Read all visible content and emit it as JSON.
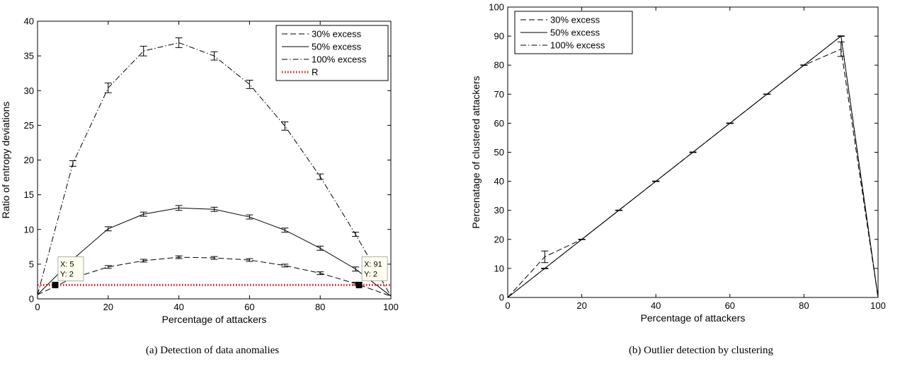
{
  "chart_data": [
    {
      "type": "line",
      "xlabel": "Percentage of attackers",
      "ylabel": "Ratio of entropy deviations",
      "xlim": [
        0,
        100
      ],
      "ylim": [
        0,
        40
      ],
      "xticks": [
        0,
        20,
        40,
        60,
        80,
        100
      ],
      "yticks": [
        0,
        5,
        10,
        15,
        20,
        25,
        30,
        35,
        40
      ],
      "grid": false,
      "legend_position": "top-right",
      "x": [
        0,
        10,
        20,
        30,
        40,
        50,
        60,
        70,
        80,
        90,
        100
      ],
      "series": [
        {
          "name": "30% excess",
          "style": "dashed",
          "color": "#000000",
          "values": [
            0.6,
            3.0,
            4.6,
            5.5,
            6.0,
            5.9,
            5.6,
            4.8,
            3.7,
            2.2,
            0.4
          ],
          "errors": [
            0,
            0.2,
            0.2,
            0.2,
            0.2,
            0.2,
            0.2,
            0.2,
            0.2,
            0.2,
            0
          ]
        },
        {
          "name": "50% excess",
          "style": "solid",
          "color": "#000000",
          "values": [
            0.6,
            5.7,
            10.1,
            12.2,
            13.1,
            12.9,
            11.8,
            9.9,
            7.3,
            4.3,
            0.4
          ],
          "errors": [
            0,
            0.3,
            0.3,
            0.3,
            0.35,
            0.3,
            0.3,
            0.3,
            0.3,
            0.3,
            0
          ]
        },
        {
          "name": "100% excess",
          "style": "dashdot",
          "color": "#000000",
          "values": [
            0.6,
            19.5,
            30.4,
            35.7,
            36.9,
            35.0,
            30.9,
            24.9,
            17.6,
            9.3,
            0.4
          ],
          "errors": [
            0,
            0.4,
            0.7,
            0.7,
            0.7,
            0.6,
            0.6,
            0.6,
            0.4,
            0.3,
            0
          ]
        },
        {
          "name": "R",
          "style": "dotted",
          "color": "#e41a1c",
          "x": [
            0,
            100
          ],
          "values": [
            2,
            2
          ]
        }
      ],
      "annotations": [
        {
          "x": 5,
          "y": 2,
          "line1": "X: 5",
          "line2": "Y: 2"
        },
        {
          "x": 91,
          "y": 2,
          "line1": "X: 91",
          "line2": "Y: 2"
        }
      ],
      "caption": "(a)  Detection of data anomalies"
    },
    {
      "type": "line",
      "xlabel": "Percentage of attackers",
      "ylabel": "Percenatage of clustered attackers",
      "xlim": [
        0,
        100
      ],
      "ylim": [
        0,
        100
      ],
      "xticks": [
        0,
        20,
        40,
        60,
        80,
        100
      ],
      "yticks": [
        0,
        10,
        20,
        30,
        40,
        50,
        60,
        70,
        80,
        90,
        100
      ],
      "grid": false,
      "legend_position": "top-left",
      "x": [
        0,
        10,
        20,
        30,
        40,
        50,
        60,
        70,
        80,
        90,
        100
      ],
      "series": [
        {
          "name": "30% excess",
          "style": "dashed",
          "color": "#000000",
          "values": [
            0,
            14,
            20,
            30,
            40,
            50,
            60,
            70,
            80,
            85.5,
            0
          ],
          "errors": [
            0,
            2,
            0,
            0,
            0,
            0,
            0,
            0,
            0,
            2.5,
            0
          ]
        },
        {
          "name": "50% excess",
          "style": "solid",
          "color": "#000000",
          "values": [
            0,
            10,
            20,
            30,
            40,
            50,
            60,
            70,
            80,
            90,
            0
          ],
          "errors": [
            0,
            0,
            0,
            0,
            0,
            0,
            0,
            0,
            0,
            0,
            0
          ]
        },
        {
          "name": "100% excess",
          "style": "dashdot",
          "color": "#000000",
          "values": [
            0,
            10,
            20,
            30,
            40,
            50,
            60,
            70,
            80,
            90,
            0
          ],
          "errors": [
            0,
            0,
            0,
            0,
            0,
            0,
            0,
            0,
            0,
            0,
            0
          ]
        }
      ],
      "caption": "(b)  Outlier detection by clustering"
    }
  ]
}
